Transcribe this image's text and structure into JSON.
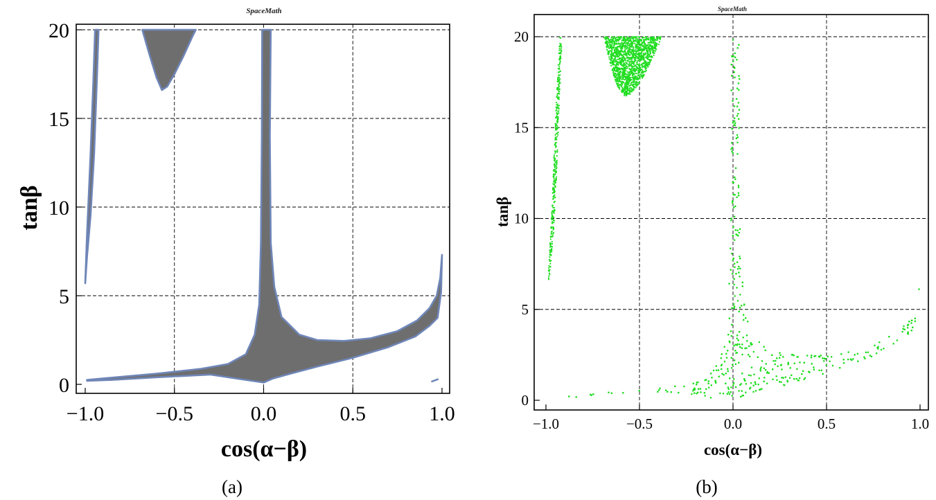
{
  "chart_data": [
    {
      "type": "area",
      "title": "SpaceMath",
      "caption": "(a)",
      "xlabel": "cos(α−β)",
      "ylabel": "tanβ",
      "xlim": [
        -1.0,
        1.0
      ],
      "ylim": [
        0,
        20
      ],
      "xticks": [
        "−1.0",
        "−0.5",
        "0.0",
        "0.5",
        "1.0"
      ],
      "xtick_values": [
        -1.0,
        -0.5,
        0.0,
        0.5,
        1.0
      ],
      "yticks": [
        "0",
        "5",
        "10",
        "15",
        "20"
      ],
      "ytick_values": [
        0,
        5,
        10,
        15,
        20
      ],
      "grid": true,
      "fill_color": "#6e6e6e",
      "edge_color": "#6f86b8",
      "regions": [
        {
          "name": "left-branch",
          "points": [
            [
              -1.0,
              5.7
            ],
            [
              -0.99,
              8.5
            ],
            [
              -0.97,
              13.0
            ],
            [
              -0.955,
              17.0
            ],
            [
              -0.945,
              20.0
            ],
            [
              -0.925,
              20.0
            ],
            [
              -0.935,
              17.0
            ],
            [
              -0.95,
              13.0
            ],
            [
              -0.97,
              9.5
            ],
            [
              -0.99,
              7.2
            ]
          ]
        },
        {
          "name": "upper-bowl",
          "points": [
            [
              -0.68,
              20.0
            ],
            [
              -0.64,
              18.6
            ],
            [
              -0.6,
              17.3
            ],
            [
              -0.57,
              16.6
            ],
            [
              -0.54,
              16.8
            ],
            [
              -0.5,
              17.5
            ],
            [
              -0.45,
              18.5
            ],
            [
              -0.4,
              19.6
            ],
            [
              -0.38,
              20.0
            ]
          ]
        },
        {
          "name": "main-band",
          "points": [
            [
              -0.99,
              0.25
            ],
            [
              -0.85,
              0.38
            ],
            [
              -0.6,
              0.6
            ],
            [
              -0.35,
              0.88
            ],
            [
              -0.2,
              1.15
            ],
            [
              -0.1,
              1.7
            ],
            [
              -0.05,
              2.8
            ],
            [
              -0.025,
              4.5
            ],
            [
              -0.015,
              8.0
            ],
            [
              -0.01,
              14.0
            ],
            [
              -0.008,
              20.0
            ],
            [
              0.04,
              20.0
            ],
            [
              0.035,
              14.0
            ],
            [
              0.04,
              8.0
            ],
            [
              0.06,
              5.5
            ],
            [
              0.1,
              3.8
            ],
            [
              0.2,
              2.8
            ],
            [
              0.3,
              2.5
            ],
            [
              0.45,
              2.45
            ],
            [
              0.6,
              2.6
            ],
            [
              0.75,
              3.0
            ],
            [
              0.86,
              3.6
            ],
            [
              0.93,
              4.3
            ],
            [
              0.97,
              5.0
            ],
            [
              0.99,
              6.0
            ],
            [
              1.0,
              7.3
            ],
            [
              0.995,
              5.2
            ],
            [
              0.975,
              3.75
            ],
            [
              0.93,
              3.3
            ],
            [
              0.85,
              2.7
            ],
            [
              0.7,
              2.1
            ],
            [
              0.5,
              1.5
            ],
            [
              0.3,
              1.0
            ],
            [
              0.15,
              0.6
            ],
            [
              0.05,
              0.32
            ],
            [
              0.0,
              0.1
            ],
            [
              -0.1,
              0.25
            ],
            [
              -0.3,
              0.55
            ],
            [
              -0.6,
              0.4
            ],
            [
              -0.85,
              0.25
            ],
            [
              -0.99,
              0.2
            ]
          ]
        },
        {
          "name": "right-fragment",
          "points": [
            [
              0.94,
              0.15
            ],
            [
              0.98,
              0.3
            ]
          ]
        }
      ]
    },
    {
      "type": "scatter",
      "title": "SpaceMath",
      "caption": "(b)",
      "xlabel": "cos(α−β)",
      "ylabel": "tanβ",
      "xlim": [
        -1.0,
        1.0
      ],
      "ylim": [
        0,
        20
      ],
      "xticks": [
        "−1.0",
        "−0.5",
        "0.0",
        "0.5",
        "1.0"
      ],
      "xtick_values": [
        -1.0,
        -0.5,
        0.0,
        0.5,
        1.0
      ],
      "yticks": [
        "0",
        "5",
        "10",
        "15",
        "20"
      ],
      "ytick_values": [
        0,
        5,
        10,
        15,
        20
      ],
      "grid": true,
      "point_color": "#22dd22",
      "regions": [
        {
          "name": "left-branch",
          "points": [
            [
              -0.99,
              6.5
            ],
            [
              -0.97,
              10.0
            ],
            [
              -0.955,
              14.0
            ],
            [
              -0.94,
              17.5
            ],
            [
              -0.925,
              20.0
            ],
            [
              -0.915,
              19.8
            ],
            [
              -0.93,
              16.0
            ],
            [
              -0.945,
              12.0
            ],
            [
              -0.96,
              9.0
            ],
            [
              -0.98,
              6.8
            ]
          ]
        },
        {
          "name": "upper-bowl",
          "points": [
            [
              -0.69,
              20.0
            ],
            [
              -0.66,
              18.6
            ],
            [
              -0.62,
              17.3
            ],
            [
              -0.58,
              16.7
            ],
            [
              -0.54,
              16.9
            ],
            [
              -0.49,
              17.6
            ],
            [
              -0.44,
              18.6
            ],
            [
              -0.4,
              19.5
            ],
            [
              -0.38,
              20.0
            ]
          ]
        },
        {
          "name": "main-band",
          "points": [
            [
              -0.99,
              0.15
            ],
            [
              -0.85,
              0.3
            ],
            [
              -0.6,
              0.5
            ],
            [
              -0.3,
              0.8
            ],
            [
              -0.15,
              1.3
            ],
            [
              -0.07,
              2.2
            ],
            [
              -0.03,
              4.0
            ],
            [
              -0.015,
              8.0
            ],
            [
              -0.01,
              14.0
            ],
            [
              -0.008,
              20.0
            ],
            [
              0.035,
              20.0
            ],
            [
              0.035,
              14.0
            ],
            [
              0.04,
              8.0
            ],
            [
              0.06,
              5.3
            ],
            [
              0.1,
              3.7
            ],
            [
              0.2,
              2.8
            ],
            [
              0.35,
              2.55
            ],
            [
              0.5,
              2.5
            ],
            [
              0.65,
              2.8
            ],
            [
              0.8,
              3.3
            ],
            [
              0.9,
              4.0
            ],
            [
              0.96,
              4.8
            ],
            [
              0.99,
              5.6
            ],
            [
              1.0,
              6.8
            ],
            [
              0.99,
              4.8
            ],
            [
              0.95,
              3.6
            ],
            [
              0.85,
              2.9
            ],
            [
              0.7,
              2.2
            ],
            [
              0.5,
              1.5
            ],
            [
              0.3,
              0.9
            ],
            [
              0.15,
              0.5
            ],
            [
              0.05,
              0.15
            ],
            [
              0.0,
              0.05
            ],
            [
              -0.15,
              0.1
            ],
            [
              -0.35,
              0.35
            ],
            [
              -0.6,
              0.35
            ],
            [
              -0.85,
              0.15
            ],
            [
              -0.99,
              0.1
            ]
          ]
        }
      ]
    }
  ]
}
